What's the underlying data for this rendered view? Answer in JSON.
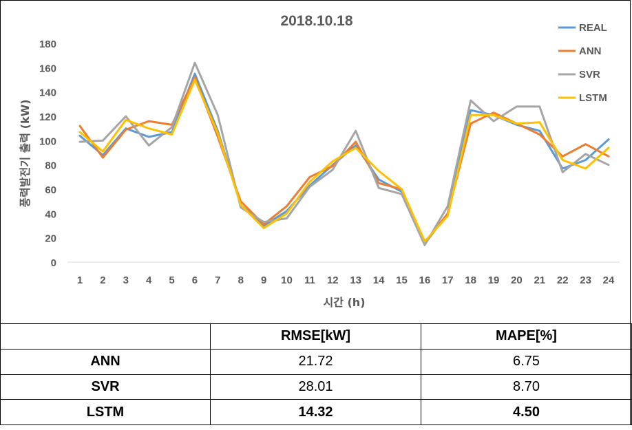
{
  "chart_data": {
    "type": "line",
    "title": "2018.10.18",
    "xlabel": "시간 (h)",
    "ylabel": "풍력발전기 출력 (kW)",
    "categories": [
      1,
      2,
      3,
      4,
      5,
      6,
      7,
      8,
      9,
      10,
      11,
      12,
      13,
      14,
      15,
      16,
      17,
      18,
      19,
      20,
      21,
      22,
      23,
      24
    ],
    "ylim": [
      0,
      180
    ],
    "yticks": [
      0,
      20,
      40,
      60,
      80,
      100,
      120,
      140,
      160,
      180
    ],
    "grid": false,
    "legend_position": "top-right",
    "series": [
      {
        "name": "REAL",
        "color": "#5B9BD5",
        "values": [
          104,
          88,
          110,
          103,
          107,
          155,
          108,
          47,
          30,
          42,
          63,
          80,
          96,
          68,
          58,
          15,
          40,
          125,
          121,
          113,
          108,
          77,
          84,
          101
        ]
      },
      {
        "name": "ANN",
        "color": "#ED7D31",
        "values": [
          112,
          86,
          109,
          116,
          113,
          152,
          103,
          50,
          31,
          46,
          70,
          79,
          99,
          65,
          60,
          16,
          40,
          114,
          123,
          114,
          105,
          87,
          97,
          87
        ]
      },
      {
        "name": "SVR",
        "color": "#A5A5A5",
        "values": [
          99,
          100,
          120,
          96,
          111,
          164,
          121,
          45,
          33,
          36,
          62,
          76,
          108,
          61,
          56,
          14,
          46,
          133,
          116,
          128,
          128,
          74,
          89,
          80
        ]
      },
      {
        "name": "LSTM",
        "color": "#FFC000",
        "values": [
          107,
          91,
          117,
          110,
          105,
          150,
          106,
          47,
          28,
          40,
          66,
          83,
          94,
          75,
          60,
          17,
          38,
          121,
          121,
          114,
          115,
          84,
          77,
          94
        ]
      }
    ]
  },
  "table": {
    "headers": [
      "",
      "RMSE[kW]",
      "MAPE[%]"
    ],
    "rows": [
      {
        "label": "ANN",
        "rmse": "21.72",
        "mape": "6.75"
      },
      {
        "label": "SVR",
        "rmse": "28.01",
        "mape": "8.70"
      },
      {
        "label": "LSTM",
        "rmse": "14.32",
        "mape": "4.50"
      }
    ]
  }
}
